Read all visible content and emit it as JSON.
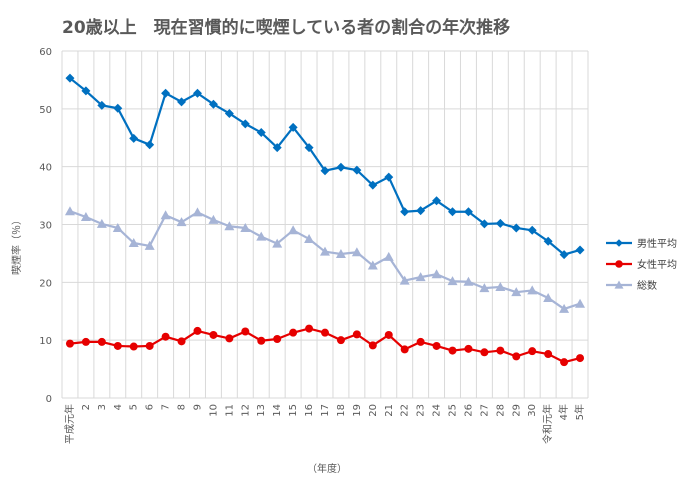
{
  "chart_data": {
    "type": "line",
    "title": "20歳以上　現在習慣的に喫煙している者の割合の年次推移",
    "xlabel": "（年度）",
    "ylabel": "喫煙率（％）",
    "ylim": [
      0,
      60
    ],
    "yticks": [
      0,
      10,
      20,
      30,
      40,
      50,
      60
    ],
    "grid": true,
    "legend_position": "right",
    "categories": [
      "平成元年",
      "2",
      "3",
      "4",
      "5",
      "6",
      "7",
      "8",
      "9",
      "10",
      "11",
      "12",
      "13",
      "14",
      "15",
      "16",
      "17",
      "18",
      "19",
      "20",
      "21",
      "22",
      "23",
      "24",
      "25",
      "26",
      "27",
      "28",
      "29",
      "30",
      "令和元年",
      "4年",
      "5年"
    ],
    "series": [
      {
        "name": "男性平均",
        "color": "#0070C0",
        "marker": "diamond",
        "values": [
          55.3,
          53.1,
          50.6,
          50.1,
          44.9,
          43.8,
          52.7,
          51.2,
          52.7,
          50.8,
          49.2,
          47.4,
          45.9,
          43.3,
          46.8,
          43.3,
          39.3,
          39.9,
          39.4,
          36.8,
          38.2,
          32.2,
          32.4,
          34.1,
          32.2,
          32.2,
          30.1,
          30.2,
          29.4,
          29.0,
          27.1,
          24.8,
          25.6
        ]
      },
      {
        "name": "女性平均",
        "color": "#E60000",
        "marker": "circle",
        "values": [
          9.4,
          9.7,
          9.7,
          9.0,
          8.9,
          9.0,
          10.6,
          9.8,
          11.6,
          10.9,
          10.3,
          11.5,
          9.9,
          10.2,
          11.3,
          12.0,
          11.3,
          10.0,
          11.0,
          9.1,
          10.9,
          8.4,
          9.7,
          9.0,
          8.2,
          8.5,
          7.9,
          8.2,
          7.2,
          8.1,
          7.6,
          6.2,
          6.9
        ]
      },
      {
        "name": "総数",
        "color": "#A6B4D6",
        "marker": "triangle",
        "values": [
          32.3,
          31.3,
          30.1,
          29.4,
          26.8,
          26.3,
          31.6,
          30.4,
          32.1,
          30.8,
          29.7,
          29.4,
          27.9,
          26.7,
          29.0,
          27.5,
          25.3,
          24.9,
          25.2,
          22.9,
          24.4,
          20.3,
          20.9,
          21.4,
          20.2,
          20.1,
          19.0,
          19.2,
          18.3,
          18.6,
          17.3,
          15.4,
          16.3
        ]
      }
    ]
  }
}
